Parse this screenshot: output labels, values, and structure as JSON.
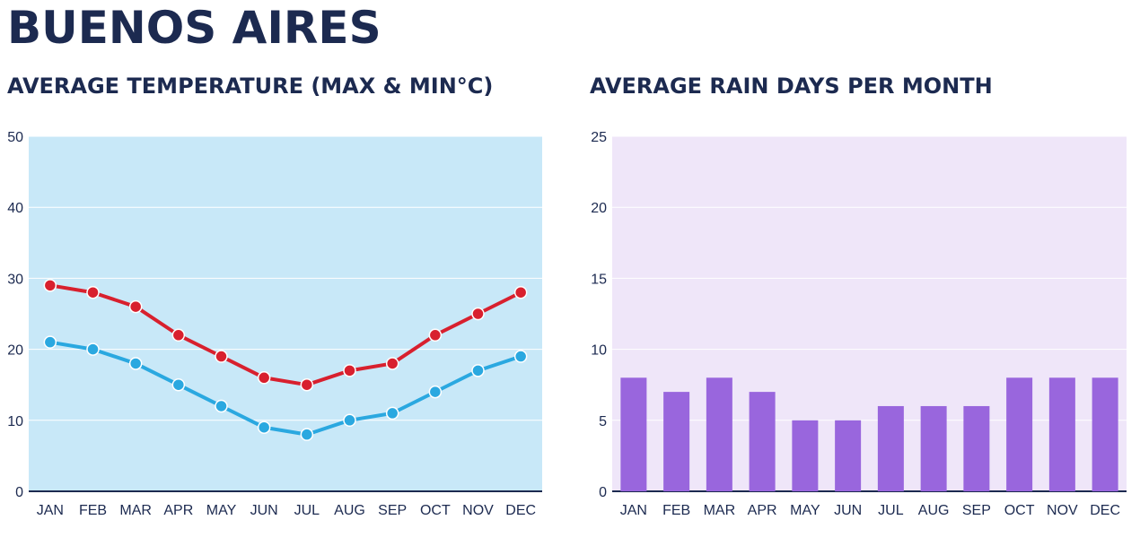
{
  "title": "BUENOS AIRES",
  "chart_data": [
    {
      "type": "line",
      "title": "AVERAGE TEMPERATURE (MAX & MIN°C)",
      "categories": [
        "JAN",
        "FEB",
        "MAR",
        "APR",
        "MAY",
        "JUN",
        "JUL",
        "AUG",
        "SEP",
        "OCT",
        "NOV",
        "DEC"
      ],
      "series": [
        {
          "values": [
            29,
            28,
            26,
            22,
            19,
            16,
            15,
            17,
            18,
            22,
            25,
            28
          ],
          "color": "#d8202e"
        },
        {
          "values": [
            21,
            20,
            18,
            15,
            12,
            9,
            8,
            10,
            11,
            14,
            17,
            19
          ],
          "color": "#2aa8e0"
        }
      ],
      "ylim": [
        0,
        50
      ],
      "yticks": [
        0,
        10,
        20,
        30,
        40,
        50
      ],
      "background": "#c8e8f8",
      "grid": true
    },
    {
      "type": "bar",
      "title": "AVERAGE RAIN DAYS PER MONTH",
      "categories": [
        "JAN",
        "FEB",
        "MAR",
        "APR",
        "MAY",
        "JUN",
        "JUL",
        "AUG",
        "SEP",
        "OCT",
        "NOV",
        "DEC"
      ],
      "values": [
        8,
        7,
        8,
        7,
        5,
        5,
        6,
        6,
        6,
        8,
        8,
        8
      ],
      "ylim": [
        0,
        25
      ],
      "yticks": [
        0,
        5,
        10,
        15,
        20,
        25
      ],
      "color": "#9966dd",
      "background": "#efe6f9",
      "grid": true
    }
  ]
}
